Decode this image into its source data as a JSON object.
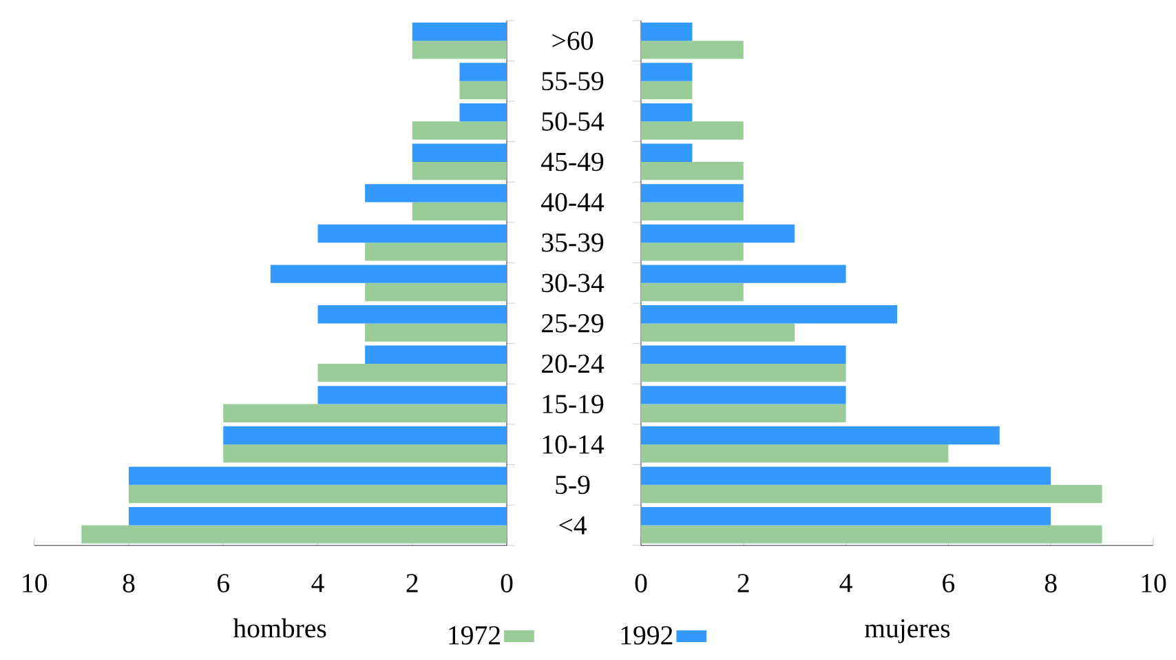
{
  "chart_data": [
    {
      "type": "bar",
      "orientation": "horizontal",
      "xlabel": "hombres",
      "legend": "bottom",
      "categories": [
        ">60",
        "55-59",
        "50-54",
        "45-49",
        "40-44",
        "35-39",
        "30-34",
        "25-29",
        "20-24",
        "15-19",
        "10-14",
        "5-9",
        "<4"
      ],
      "xlim": [
        10,
        0
      ],
      "xticks": [
        10,
        8,
        6,
        4,
        2,
        0
      ],
      "series": [
        {
          "name": "1972",
          "color": "#99cc99",
          "values": [
            2,
            1,
            2,
            2,
            2,
            3,
            3,
            3,
            4,
            6,
            6,
            8,
            9
          ]
        },
        {
          "name": "1992",
          "color": "#3399ff",
          "values": [
            2,
            1,
            1,
            2,
            3,
            4,
            5,
            4,
            3,
            4,
            6,
            8,
            8
          ]
        }
      ]
    },
    {
      "type": "bar",
      "orientation": "horizontal",
      "xlabel": "mujeres",
      "categories": [
        null,
        null,
        null,
        null,
        null,
        null,
        null,
        null,
        null,
        null,
        null,
        null,
        null
      ],
      "xlim": [
        0,
        10
      ],
      "xticks": [
        0,
        2,
        4,
        6,
        8,
        10
      ],
      "series": [
        {
          "color": "#99cc99",
          "values": [
            2,
            1,
            2,
            2,
            2,
            2,
            2,
            3,
            4,
            4,
            6,
            9,
            9
          ]
        },
        {
          "color": "#3399ff",
          "values": [
            1,
            1,
            1,
            1,
            2,
            3,
            4,
            5,
            4,
            4,
            7,
            8,
            8
          ]
        }
      ]
    }
  ]
}
